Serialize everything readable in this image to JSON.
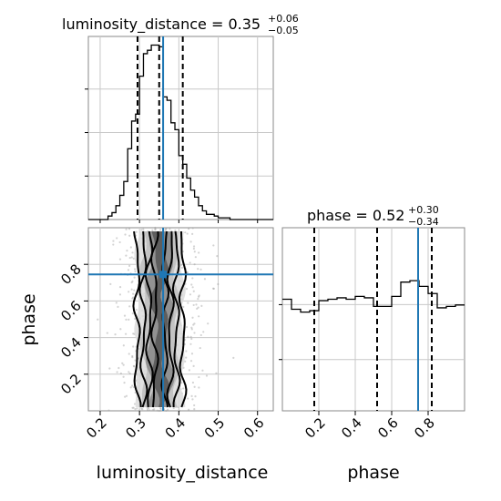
{
  "chart_data": {
    "type": "corner",
    "parameters": [
      "luminosity_distance",
      "phase"
    ],
    "titles": [
      {
        "param": "luminosity_distance",
        "prefix": "luminosity_distance = ",
        "median": "0.35",
        "plus": "+0.06",
        "minus": "−0.05"
      },
      {
        "param": "phase",
        "prefix": "phase = ",
        "median": "0.52",
        "plus": "+0.30",
        "minus": "−0.34"
      }
    ],
    "truths": {
      "luminosity_distance": 0.36,
      "phase": 0.745
    },
    "truth_color": "#1f77b4",
    "hist_color": "#000000",
    "grid": true,
    "luminosity_distance": {
      "xlim": [
        0.17,
        0.64
      ],
      "ticks": [
        0.2,
        0.3,
        0.4,
        0.5,
        0.6
      ],
      "tick_labels": [
        "0.2",
        "0.3",
        "0.4",
        "0.5",
        "0.6"
      ],
      "quantiles": [
        0.295,
        0.35,
        0.41
      ],
      "hist_edges": [
        0.17,
        0.18,
        0.19,
        0.2,
        0.21,
        0.22,
        0.23,
        0.24,
        0.25,
        0.26,
        0.27,
        0.28,
        0.29,
        0.3,
        0.31,
        0.32,
        0.33,
        0.34,
        0.35,
        0.36,
        0.37,
        0.38,
        0.39,
        0.4,
        0.41,
        0.42,
        0.43,
        0.44,
        0.45,
        0.46,
        0.47,
        0.48,
        0.49,
        0.5,
        0.51,
        0.52,
        0.53,
        0.54,
        0.55,
        0.56,
        0.57,
        0.58,
        0.59,
        0.6,
        0.61,
        0.62,
        0.63,
        0.64
      ],
      "hist_counts": [
        0,
        0,
        0,
        0,
        0,
        2,
        4,
        8,
        14,
        22,
        41,
        57,
        61,
        83,
        96,
        98,
        101,
        101,
        100,
        71,
        69,
        56,
        52,
        37,
        32,
        24,
        17,
        13,
        8,
        5,
        3,
        3,
        2,
        1,
        1,
        1,
        0,
        0,
        0,
        0,
        0,
        0,
        0,
        0,
        0,
        0,
        0
      ],
      "hist_ymax": 106
    },
    "phase": {
      "xlim": [
        0.0,
        1.0
      ],
      "ticks": [
        0.2,
        0.4,
        0.6,
        0.8
      ],
      "tick_labels": [
        "0.2",
        "0.4",
        "0.6",
        "0.8"
      ],
      "quantiles": [
        0.175,
        0.52,
        0.82
      ],
      "hist_edges": [
        0.0,
        0.05,
        0.1,
        0.15,
        0.2,
        0.25,
        0.3,
        0.35,
        0.4,
        0.45,
        0.5,
        0.55,
        0.6,
        0.65,
        0.7,
        0.75,
        0.8,
        0.85,
        0.9,
        0.95,
        1.0
      ],
      "hist_counts": [
        78,
        71,
        69,
        70,
        77,
        78,
        79,
        78,
        80,
        79,
        73,
        73,
        80,
        90,
        91,
        87,
        82,
        72,
        73,
        74
      ],
      "hist_ymax": 128
    },
    "joint": {
      "x": "luminosity_distance",
      "y": "phase",
      "ylim": [
        0.0,
        1.0
      ],
      "contour_halfwidths": [
        0.013,
        0.027,
        0.042,
        0.058
      ],
      "center_x": 0.352,
      "density_bands": [
        {
          "halfwidth": 0.058,
          "shade": "#dcdcdc"
        },
        {
          "halfwidth": 0.042,
          "shade": "#bdbdbd"
        },
        {
          "halfwidth": 0.027,
          "shade": "#8a8a8a"
        },
        {
          "halfwidth": 0.013,
          "shade": "#555555"
        }
      ]
    },
    "axis_labels": {
      "x_left": "luminosity_distance",
      "x_right": "phase",
      "y_joint": "phase"
    }
  }
}
